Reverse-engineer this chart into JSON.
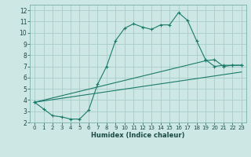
{
  "xlabel": "Humidex (Indice chaleur)",
  "bg_color": "#cde8e4",
  "grid_color": "#a8ccc8",
  "line_color": "#1a7a6a",
  "xlim": [
    -0.5,
    23.5
  ],
  "ylim": [
    2,
    12.5
  ],
  "xticks": [
    0,
    1,
    2,
    3,
    4,
    5,
    6,
    7,
    8,
    9,
    10,
    11,
    12,
    13,
    14,
    15,
    16,
    17,
    18,
    19,
    20,
    21,
    22,
    23
  ],
  "yticks": [
    2,
    3,
    4,
    5,
    6,
    7,
    8,
    9,
    10,
    11,
    12
  ],
  "curve1": {
    "x": [
      0,
      1,
      2,
      3,
      4,
      5,
      6,
      7,
      8,
      9,
      10,
      11,
      12,
      13,
      14,
      15,
      16,
      17,
      18,
      19,
      20,
      21,
      22,
      23
    ],
    "y": [
      3.8,
      3.2,
      2.6,
      2.5,
      2.3,
      2.3,
      3.1,
      5.4,
      7.0,
      9.3,
      10.4,
      10.8,
      10.5,
      10.3,
      10.7,
      10.7,
      11.8,
      11.1,
      9.3,
      7.6,
      7.0,
      7.1,
      7.1,
      7.1
    ]
  },
  "line2": {
    "x": [
      0,
      19,
      20,
      21,
      22,
      23
    ],
    "y": [
      3.8,
      7.5,
      7.6,
      7.0,
      7.1,
      7.1
    ]
  },
  "line3": {
    "x": [
      0,
      23
    ],
    "y": [
      3.8,
      6.5
    ]
  }
}
